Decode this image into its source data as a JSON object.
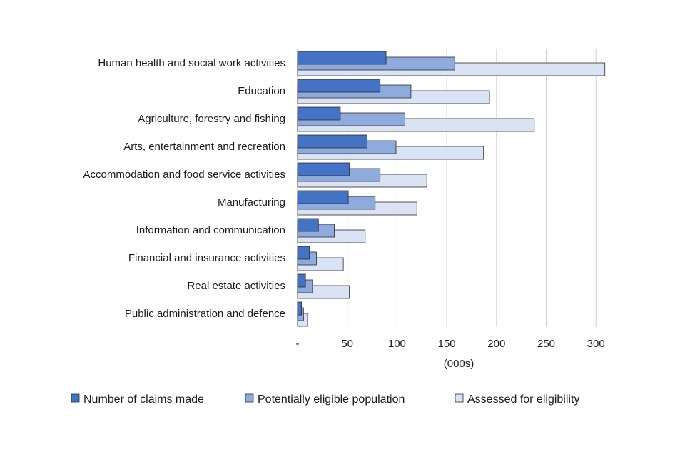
{
  "chart_data": {
    "type": "bar",
    "orientation": "horizontal",
    "title": "",
    "xlabel": "(000s)",
    "ylabel": "",
    "xlim": [
      0,
      310
    ],
    "x_ticks": [
      0,
      50,
      100,
      150,
      200,
      250,
      300
    ],
    "x_tick_labels": [
      "-",
      "50",
      "100",
      "150",
      "200",
      "250",
      "300"
    ],
    "grid": "vertical",
    "legend_position": "bottom",
    "categories": [
      "Human health and social work activities",
      "Education",
      "Agriculture, forestry and fishing",
      "Arts, entertainment and recreation",
      "Accommodation and food service activities",
      "Manufacturing",
      "Information and communication",
      "Financial and insurance activities",
      "Real estate activities",
      "Public administration and defence"
    ],
    "series": [
      {
        "name": "Number of claims made",
        "color": "#4472c4",
        "values": [
          89,
          83,
          43,
          70,
          52,
          51,
          21,
          12,
          8,
          4
        ]
      },
      {
        "name": "Potentially eligible population",
        "color": "#8faadc",
        "values": [
          158,
          114,
          108,
          99,
          83,
          78,
          37,
          19,
          15,
          6
        ]
      },
      {
        "name": "Assessed for eligibility",
        "color": "#dae3f3",
        "values": [
          309,
          193,
          238,
          187,
          130,
          120,
          68,
          46,
          52,
          10
        ]
      }
    ]
  }
}
